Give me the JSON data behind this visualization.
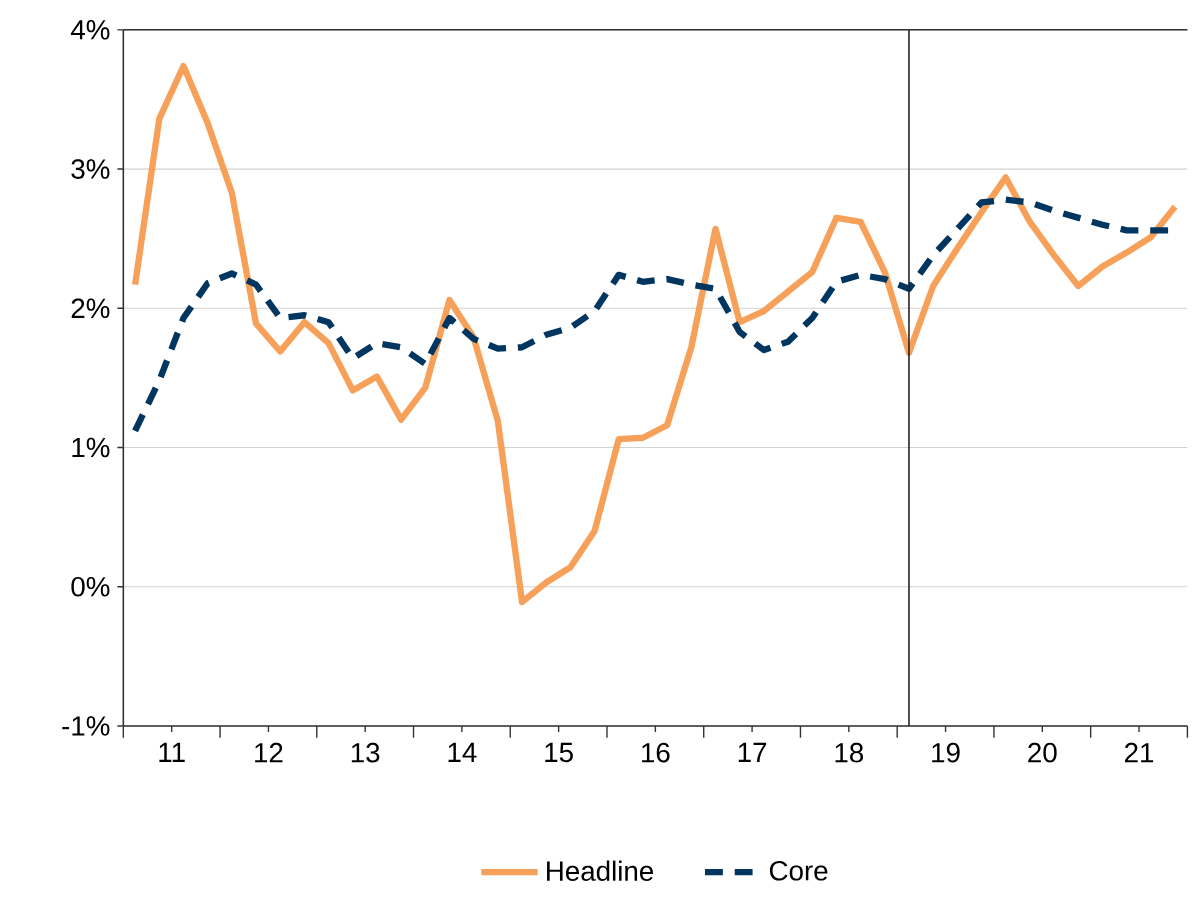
{
  "chart_data": {
    "type": "line",
    "x": [
      "2011-02-15",
      "2011-05-15",
      "2011-08-15",
      "2011-11-15",
      "2012-02-15",
      "2012-05-15",
      "2012-08-15",
      "2012-11-15",
      "2013-02-15",
      "2013-05-15",
      "2013-08-15",
      "2013-11-15",
      "2014-02-15",
      "2014-05-15",
      "2014-08-15",
      "2014-11-15",
      "2015-02-15",
      "2015-05-15",
      "2015-08-15",
      "2015-11-15",
      "2016-02-15",
      "2016-05-15",
      "2016-08-15",
      "2016-11-15",
      "2017-02-15",
      "2017-05-15",
      "2017-08-15",
      "2017-11-15",
      "2018-02-15",
      "2018-05-15",
      "2018-08-15",
      "2018-11-15",
      "2019-02-15",
      "2019-05-15",
      "2019-08-15",
      "2019-11-15",
      "2020-02-15",
      "2020-05-15",
      "2020-08-15",
      "2020-11-15",
      "2021-02-15",
      "2021-05-15",
      "2021-08-15",
      "2021-11-15"
    ],
    "series": [
      {
        "name": "Headline",
        "color": "#f7a05a",
        "line_style": "solid",
        "values": [
          2.17,
          3.36,
          3.74,
          3.33,
          2.83,
          1.89,
          1.69,
          1.9,
          1.75,
          1.41,
          1.51,
          1.2,
          1.43,
          2.06,
          1.79,
          1.19,
          -0.11,
          0.03,
          0.14,
          0.4,
          1.06,
          1.07,
          1.16,
          1.72,
          2.57,
          1.9,
          1.98,
          2.12,
          2.26,
          2.65,
          2.62,
          2.26,
          1.68,
          2.16,
          2.43,
          2.69,
          2.94,
          2.62,
          2.38,
          2.16,
          2.3,
          2.4,
          2.51,
          2.73
        ]
      },
      {
        "name": "Core",
        "color": "#003660",
        "line_style": "dashed",
        "values": [
          1.12,
          1.48,
          1.93,
          2.18,
          2.25,
          2.17,
          1.93,
          1.95,
          1.9,
          1.64,
          1.75,
          1.72,
          1.6,
          1.93,
          1.78,
          1.71,
          1.72,
          1.81,
          1.86,
          1.98,
          2.24,
          2.19,
          2.21,
          2.17,
          2.14,
          1.83,
          1.7,
          1.76,
          1.93,
          2.19,
          2.24,
          2.21,
          2.14,
          2.38,
          2.57,
          2.76,
          2.78,
          2.76,
          2.7,
          2.65,
          2.6,
          2.56,
          2.56,
          2.56
        ]
      }
    ],
    "xlim": [
      "2011-01-01",
      "2022-01-01"
    ],
    "xticks": [
      {
        "value": "2011-01-01",
        "label": null
      },
      {
        "value": "2011-07-01",
        "label": "11"
      },
      {
        "value": "2012-01-01",
        "label": null
      },
      {
        "value": "2012-07-01",
        "label": "12"
      },
      {
        "value": "2013-01-01",
        "label": null
      },
      {
        "value": "2013-07-01",
        "label": "13"
      },
      {
        "value": "2014-01-01",
        "label": null
      },
      {
        "value": "2014-07-01",
        "label": "14"
      },
      {
        "value": "2015-01-01",
        "label": null
      },
      {
        "value": "2015-07-01",
        "label": "15"
      },
      {
        "value": "2016-01-01",
        "label": null
      },
      {
        "value": "2016-07-01",
        "label": "16"
      },
      {
        "value": "2017-01-01",
        "label": null
      },
      {
        "value": "2017-07-01",
        "label": "17"
      },
      {
        "value": "2018-01-01",
        "label": null
      },
      {
        "value": "2018-07-01",
        "label": "18"
      },
      {
        "value": "2019-01-01",
        "label": null
      },
      {
        "value": "2019-07-01",
        "label": "19"
      },
      {
        "value": "2020-01-01",
        "label": null
      },
      {
        "value": "2020-07-01",
        "label": "20"
      },
      {
        "value": "2021-01-01",
        "label": null
      },
      {
        "value": "2021-07-01",
        "label": "21"
      },
      {
        "value": "2022-01-01",
        "label": null
      }
    ],
    "ylim": [
      -1,
      4
    ],
    "yticks": [
      {
        "value": -1,
        "label": "-1%"
      },
      {
        "value": 0,
        "label": "0%"
      },
      {
        "value": 1,
        "label": "1%"
      },
      {
        "value": 2,
        "label": "2%"
      },
      {
        "value": 3,
        "label": "3%"
      },
      {
        "value": 4,
        "label": "4%"
      }
    ],
    "ref_lines": [
      {
        "axis": "x",
        "value": "2019-02-15",
        "color": "#222222",
        "line_style": "solid"
      }
    ],
    "grid": "y",
    "legend": "bottom"
  }
}
